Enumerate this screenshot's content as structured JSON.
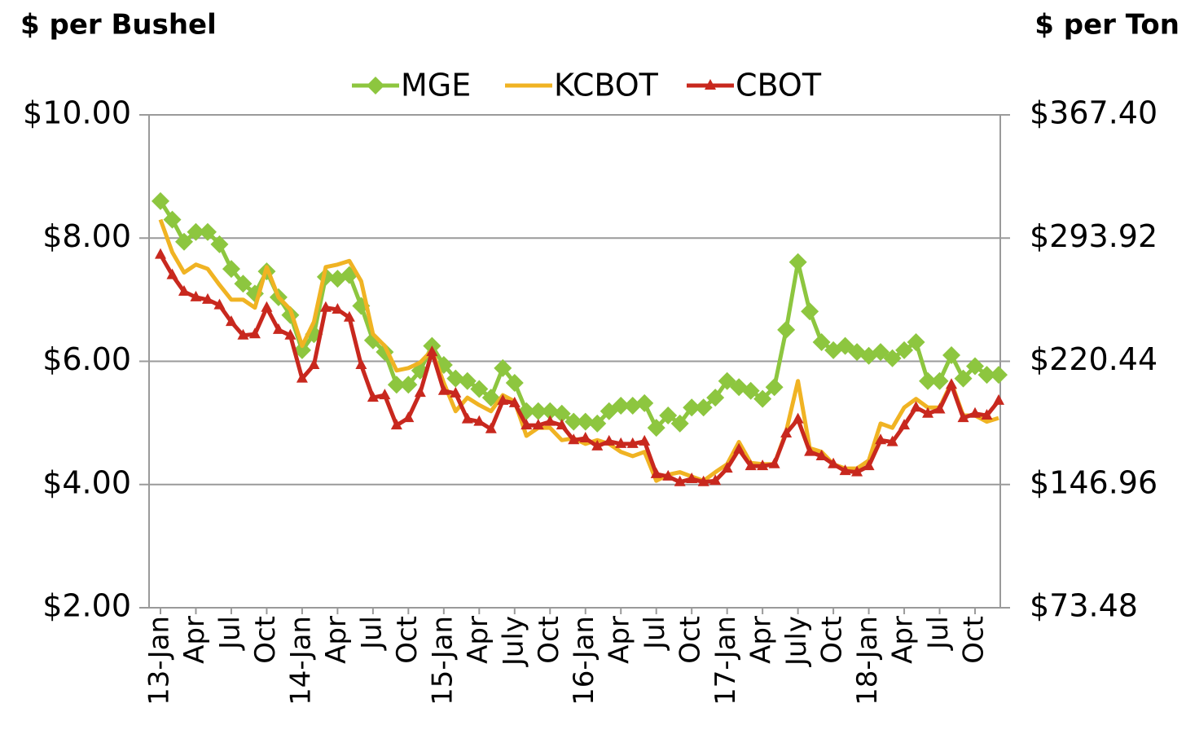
{
  "chart_data": {
    "type": "line",
    "y_title": "$ per Bushel",
    "y2_title": "$ per Ton",
    "categories": [
      "13-Jan",
      null,
      null,
      "Apr",
      null,
      null,
      "Jul",
      null,
      null,
      "Oct",
      null,
      null,
      "14-Jan",
      null,
      null,
      "Apr",
      null,
      null,
      "Jul",
      null,
      null,
      "Oct",
      null,
      null,
      "15-Jan",
      null,
      null,
      "Apr",
      null,
      null,
      "July",
      null,
      null,
      "Oct",
      null,
      null,
      "16-Jan",
      null,
      null,
      "Apr",
      null,
      null,
      "Jul",
      null,
      null,
      "Oct",
      null,
      null,
      "17-Jan",
      null,
      null,
      "Apr",
      null,
      null,
      "July",
      null,
      null,
      "Oct",
      null,
      null,
      "18-Jan",
      null,
      null,
      "Apr",
      null,
      null,
      "Jul",
      null,
      null,
      "Oct",
      null,
      null
    ],
    "series": [
      {
        "name": "MGE",
        "color": "#8dc63f",
        "marker": "diamond",
        "values": [
          8.6,
          8.3,
          7.94,
          8.1,
          8.1,
          7.9,
          7.5,
          7.26,
          7.1,
          7.46,
          7.04,
          6.75,
          6.18,
          6.44,
          7.37,
          7.34,
          7.4,
          6.9,
          6.34,
          6.15,
          5.62,
          5.62,
          5.85,
          6.25,
          5.94,
          5.72,
          5.68,
          5.55,
          5.41,
          5.89,
          5.65,
          5.19,
          5.19,
          5.19,
          5.15,
          5.02,
          5.02,
          4.99,
          5.19,
          5.28,
          5.28,
          5.32,
          4.92,
          5.12,
          4.99,
          5.25,
          5.25,
          5.41,
          5.68,
          5.58,
          5.52,
          5.39,
          5.58,
          6.51,
          7.61,
          6.81,
          6.31,
          6.18,
          6.25,
          6.15,
          6.09,
          6.15,
          6.05,
          6.18,
          6.31,
          5.68,
          5.68,
          6.1,
          5.72,
          5.92,
          5.78,
          5.78
        ]
      },
      {
        "name": "KCBOT",
        "color": "#f0b323",
        "values": [
          8.3,
          7.77,
          7.44,
          7.57,
          7.5,
          7.24,
          7.0,
          7.0,
          6.87,
          7.53,
          7.04,
          6.84,
          6.25,
          6.64,
          7.53,
          7.57,
          7.63,
          7.3,
          6.44,
          6.25,
          5.85,
          5.89,
          5.98,
          6.18,
          5.65,
          5.19,
          5.41,
          5.29,
          5.19,
          5.45,
          5.35,
          4.79,
          4.92,
          4.92,
          4.72,
          4.75,
          4.66,
          4.72,
          4.66,
          4.53,
          4.46,
          4.53,
          4.06,
          4.16,
          4.2,
          4.13,
          4.06,
          4.2,
          4.33,
          4.69,
          4.35,
          4.33,
          4.33,
          4.86,
          5.68,
          4.59,
          4.53,
          4.33,
          4.26,
          4.26,
          4.39,
          4.99,
          4.92,
          5.25,
          5.39,
          5.25,
          5.25,
          5.65,
          5.12,
          5.12,
          5.02,
          5.08
        ]
      },
      {
        "name": "CBOT",
        "color": "#c8281e",
        "marker": "triangle",
        "values": [
          7.73,
          7.4,
          7.13,
          7.04,
          7.0,
          6.91,
          6.64,
          6.42,
          6.44,
          6.87,
          6.51,
          6.42,
          5.72,
          5.94,
          6.87,
          6.84,
          6.71,
          5.94,
          5.41,
          5.45,
          4.96,
          5.08,
          5.49,
          6.15,
          5.52,
          5.48,
          5.06,
          5.02,
          4.9,
          5.36,
          5.32,
          4.96,
          4.96,
          5.02,
          4.96,
          4.72,
          4.75,
          4.62,
          4.7,
          4.66,
          4.66,
          4.7,
          4.17,
          4.13,
          4.04,
          4.09,
          4.04,
          4.06,
          4.26,
          4.57,
          4.3,
          4.3,
          4.33,
          4.83,
          5.06,
          4.53,
          4.46,
          4.33,
          4.22,
          4.2,
          4.3,
          4.72,
          4.69,
          4.96,
          5.25,
          5.15,
          5.22,
          5.62,
          5.08,
          5.15,
          5.12,
          5.36
        ]
      }
    ],
    "ylim": [
      2,
      10
    ],
    "yticks": [
      {
        "value": 2,
        "label": "$2.00"
      },
      {
        "value": 4,
        "label": "$4.00"
      },
      {
        "value": 6,
        "label": "$6.00"
      },
      {
        "value": 8,
        "label": "$8.00"
      },
      {
        "value": 10,
        "label": "$10.00"
      }
    ],
    "y2lim": [
      73.48,
      367.4
    ],
    "y2ticks": [
      {
        "value": 73.48,
        "label": "$73.48"
      },
      {
        "value": 146.96,
        "label": "$146.96"
      },
      {
        "value": 220.44,
        "label": "$220.44"
      },
      {
        "value": 293.92,
        "label": "$293.92"
      },
      {
        "value": 367.4,
        "label": "$367.40"
      }
    ],
    "grid": true
  }
}
